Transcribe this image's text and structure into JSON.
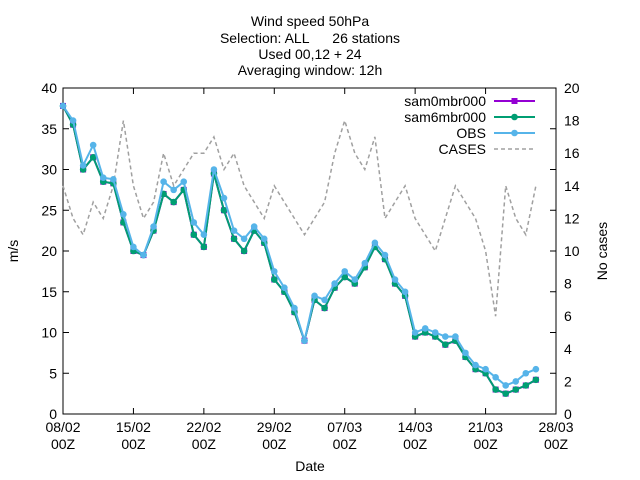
{
  "chart_data": {
    "type": "line",
    "title_lines": [
      "Wind speed 50hPa",
      "Selection: ALL      26 stations",
      "Used 00,12 + 24",
      "Averaging window: 12h"
    ],
    "xlabel": "Date",
    "ylabel": "m/s",
    "y2label": "No cases",
    "x_ticks": [
      {
        "top": "08/02",
        "bottom": "00Z",
        "date": "2024-02-08"
      },
      {
        "top": "15/02",
        "bottom": "00Z",
        "date": "2024-02-15"
      },
      {
        "top": "22/02",
        "bottom": "00Z",
        "date": "2024-02-22"
      },
      {
        "top": "29/02",
        "bottom": "00Z",
        "date": "2024-02-29"
      },
      {
        "top": "07/03",
        "bottom": "00Z",
        "date": "2024-03-07"
      },
      {
        "top": "14/03",
        "bottom": "00Z",
        "date": "2024-03-14"
      },
      {
        "top": "21/03",
        "bottom": "00Z",
        "date": "2024-03-21"
      },
      {
        "top": "28/03",
        "bottom": "00Z",
        "date": "2024-03-28"
      }
    ],
    "xlim": [
      "2024-02-08",
      "2024-03-28"
    ],
    "ylim": [
      0,
      40
    ],
    "y_ticks": [
      0,
      5,
      10,
      15,
      20,
      25,
      30,
      35,
      40
    ],
    "y2lim": [
      0,
      20
    ],
    "y2_ticks": [
      0,
      2,
      4,
      6,
      8,
      10,
      12,
      14,
      16,
      18,
      20
    ],
    "legend_position": "top-right",
    "grid": false,
    "series": [
      {
        "name": "sam0mbr000",
        "axis": "y",
        "color": "#9400d3",
        "marker": "square",
        "points": [
          [
            "2024-02-08",
            37.8
          ],
          [
            "2024-02-09",
            35.5
          ],
          [
            "2024-02-10",
            30.0
          ],
          [
            "2024-02-11",
            31.5
          ],
          [
            "2024-02-12",
            28.5
          ],
          [
            "2024-02-13",
            28.3
          ],
          [
            "2024-02-14",
            23.5
          ],
          [
            "2024-02-15",
            20.0
          ],
          [
            "2024-02-16",
            19.5
          ],
          [
            "2024-02-17",
            22.5
          ],
          [
            "2024-02-18",
            27.0
          ],
          [
            "2024-02-19",
            26.0
          ],
          [
            "2024-02-20",
            27.5
          ],
          [
            "2024-02-21",
            22.0
          ],
          [
            "2024-02-22",
            20.5
          ],
          [
            "2024-02-23",
            29.5
          ],
          [
            "2024-02-24",
            25.0
          ],
          [
            "2024-02-25",
            21.5
          ],
          [
            "2024-02-26",
            20.0
          ],
          [
            "2024-02-27",
            22.5
          ],
          [
            "2024-02-28",
            21.0
          ],
          [
            "2024-02-29",
            16.5
          ],
          [
            "2024-03-01",
            15.0
          ],
          [
            "2024-03-02",
            12.5
          ],
          [
            "2024-03-03",
            9.0
          ],
          [
            "2024-03-04",
            14.0
          ],
          [
            "2024-03-05",
            13.0
          ],
          [
            "2024-03-06",
            15.5
          ],
          [
            "2024-03-07",
            16.8
          ],
          [
            "2024-03-08",
            16.0
          ],
          [
            "2024-03-09",
            18.0
          ],
          [
            "2024-03-10",
            20.5
          ],
          [
            "2024-03-11",
            19.0
          ],
          [
            "2024-03-12",
            16.0
          ],
          [
            "2024-03-13",
            14.5
          ],
          [
            "2024-03-14",
            9.5
          ],
          [
            "2024-03-15",
            10.0
          ],
          [
            "2024-03-16",
            9.5
          ],
          [
            "2024-03-17",
            8.5
          ],
          [
            "2024-03-18",
            9.0
          ],
          [
            "2024-03-19",
            7.0
          ],
          [
            "2024-03-20",
            5.5
          ],
          [
            "2024-03-21",
            5.0
          ],
          [
            "2024-03-22",
            3.0
          ],
          [
            "2024-03-23",
            2.5
          ],
          [
            "2024-03-24",
            3.0
          ],
          [
            "2024-03-25",
            3.5
          ],
          [
            "2024-03-26",
            4.2
          ]
        ]
      },
      {
        "name": "sam6mbr000",
        "axis": "y",
        "color": "#009e73",
        "marker": "circle",
        "points": [
          [
            "2024-02-08",
            37.8
          ],
          [
            "2024-02-09",
            35.5
          ],
          [
            "2024-02-10",
            30.0
          ],
          [
            "2024-02-11",
            31.5
          ],
          [
            "2024-02-12",
            28.5
          ],
          [
            "2024-02-13",
            28.3
          ],
          [
            "2024-02-14",
            23.5
          ],
          [
            "2024-02-15",
            20.0
          ],
          [
            "2024-02-16",
            19.5
          ],
          [
            "2024-02-17",
            22.5
          ],
          [
            "2024-02-18",
            27.0
          ],
          [
            "2024-02-19",
            26.0
          ],
          [
            "2024-02-20",
            27.5
          ],
          [
            "2024-02-21",
            22.0
          ],
          [
            "2024-02-22",
            20.5
          ],
          [
            "2024-02-23",
            29.5
          ],
          [
            "2024-02-24",
            25.0
          ],
          [
            "2024-02-25",
            21.5
          ],
          [
            "2024-02-26",
            20.0
          ],
          [
            "2024-02-27",
            22.5
          ],
          [
            "2024-02-28",
            21.0
          ],
          [
            "2024-02-29",
            16.5
          ],
          [
            "2024-03-01",
            15.0
          ],
          [
            "2024-03-02",
            12.5
          ],
          [
            "2024-03-03",
            9.0
          ],
          [
            "2024-03-04",
            14.0
          ],
          [
            "2024-03-05",
            13.0
          ],
          [
            "2024-03-06",
            15.5
          ],
          [
            "2024-03-07",
            16.8
          ],
          [
            "2024-03-08",
            16.0
          ],
          [
            "2024-03-09",
            18.0
          ],
          [
            "2024-03-10",
            20.5
          ],
          [
            "2024-03-11",
            19.0
          ],
          [
            "2024-03-12",
            16.0
          ],
          [
            "2024-03-13",
            14.5
          ],
          [
            "2024-03-14",
            9.5
          ],
          [
            "2024-03-15",
            10.0
          ],
          [
            "2024-03-16",
            9.5
          ],
          [
            "2024-03-17",
            8.5
          ],
          [
            "2024-03-18",
            9.0
          ],
          [
            "2024-03-19",
            7.0
          ],
          [
            "2024-03-20",
            5.5
          ],
          [
            "2024-03-21",
            5.0
          ],
          [
            "2024-03-22",
            3.0
          ],
          [
            "2024-03-23",
            2.5
          ],
          [
            "2024-03-24",
            3.0
          ],
          [
            "2024-03-25",
            3.5
          ],
          [
            "2024-03-26",
            4.2
          ]
        ]
      },
      {
        "name": "OBS",
        "axis": "y",
        "color": "#56b4e9",
        "marker": "circle",
        "points": [
          [
            "2024-02-08",
            37.8
          ],
          [
            "2024-02-09",
            36.0
          ],
          [
            "2024-02-10",
            30.5
          ],
          [
            "2024-02-11",
            33.0
          ],
          [
            "2024-02-12",
            29.0
          ],
          [
            "2024-02-13",
            28.8
          ],
          [
            "2024-02-14",
            24.5
          ],
          [
            "2024-02-15",
            20.5
          ],
          [
            "2024-02-16",
            19.5
          ],
          [
            "2024-02-17",
            23.0
          ],
          [
            "2024-02-18",
            28.5
          ],
          [
            "2024-02-19",
            27.5
          ],
          [
            "2024-02-20",
            28.5
          ],
          [
            "2024-02-21",
            23.5
          ],
          [
            "2024-02-22",
            22.0
          ],
          [
            "2024-02-23",
            30.0
          ],
          [
            "2024-02-24",
            26.5
          ],
          [
            "2024-02-25",
            22.5
          ],
          [
            "2024-02-26",
            21.5
          ],
          [
            "2024-02-27",
            23.0
          ],
          [
            "2024-02-28",
            21.5
          ],
          [
            "2024-02-29",
            17.5
          ],
          [
            "2024-03-01",
            15.5
          ],
          [
            "2024-03-02",
            13.0
          ],
          [
            "2024-03-03",
            9.0
          ],
          [
            "2024-03-04",
            14.5
          ],
          [
            "2024-03-05",
            14.0
          ],
          [
            "2024-03-06",
            16.0
          ],
          [
            "2024-03-07",
            17.5
          ],
          [
            "2024-03-08",
            16.5
          ],
          [
            "2024-03-09",
            18.5
          ],
          [
            "2024-03-10",
            21.0
          ],
          [
            "2024-03-11",
            19.5
          ],
          [
            "2024-03-12",
            16.5
          ],
          [
            "2024-03-13",
            15.0
          ],
          [
            "2024-03-14",
            10.0
          ],
          [
            "2024-03-15",
            10.5
          ],
          [
            "2024-03-16",
            10.0
          ],
          [
            "2024-03-17",
            9.5
          ],
          [
            "2024-03-18",
            9.5
          ],
          [
            "2024-03-19",
            7.5
          ],
          [
            "2024-03-20",
            6.0
          ],
          [
            "2024-03-21",
            5.5
          ],
          [
            "2024-03-22",
            4.5
          ],
          [
            "2024-03-23",
            3.5
          ],
          [
            "2024-03-24",
            4.0
          ],
          [
            "2024-03-25",
            5.0
          ],
          [
            "2024-03-26",
            5.5
          ]
        ]
      },
      {
        "name": "CASES",
        "axis": "y2",
        "color": "#a0a0a0",
        "marker": "none",
        "dashed": true,
        "points": [
          [
            "2024-02-08",
            14
          ],
          [
            "2024-02-09",
            12
          ],
          [
            "2024-02-10",
            11
          ],
          [
            "2024-02-11",
            13
          ],
          [
            "2024-02-12",
            12
          ],
          [
            "2024-02-13",
            14
          ],
          [
            "2024-02-14",
            18
          ],
          [
            "2024-02-15",
            14
          ],
          [
            "2024-02-16",
            12
          ],
          [
            "2024-02-17",
            13
          ],
          [
            "2024-02-18",
            16
          ],
          [
            "2024-02-19",
            14
          ],
          [
            "2024-02-20",
            15
          ],
          [
            "2024-02-21",
            16
          ],
          [
            "2024-02-22",
            16
          ],
          [
            "2024-02-23",
            17
          ],
          [
            "2024-02-24",
            15
          ],
          [
            "2024-02-25",
            16
          ],
          [
            "2024-02-26",
            14
          ],
          [
            "2024-02-27",
            13
          ],
          [
            "2024-02-28",
            12
          ],
          [
            "2024-02-29",
            14
          ],
          [
            "2024-03-01",
            13
          ],
          [
            "2024-03-02",
            12
          ],
          [
            "2024-03-03",
            11
          ],
          [
            "2024-03-04",
            12
          ],
          [
            "2024-03-05",
            13
          ],
          [
            "2024-03-06",
            16
          ],
          [
            "2024-03-07",
            18
          ],
          [
            "2024-03-08",
            16
          ],
          [
            "2024-03-09",
            15
          ],
          [
            "2024-03-10",
            17
          ],
          [
            "2024-03-11",
            12
          ],
          [
            "2024-03-12",
            13
          ],
          [
            "2024-03-13",
            14
          ],
          [
            "2024-03-14",
            12
          ],
          [
            "2024-03-15",
            11
          ],
          [
            "2024-03-16",
            10
          ],
          [
            "2024-03-17",
            12
          ],
          [
            "2024-03-18",
            14
          ],
          [
            "2024-03-19",
            13
          ],
          [
            "2024-03-20",
            12
          ],
          [
            "2024-03-21",
            10
          ],
          [
            "2024-03-22",
            6
          ],
          [
            "2024-03-23",
            14
          ],
          [
            "2024-03-24",
            12
          ],
          [
            "2024-03-25",
            11
          ],
          [
            "2024-03-26",
            14
          ]
        ]
      }
    ]
  }
}
